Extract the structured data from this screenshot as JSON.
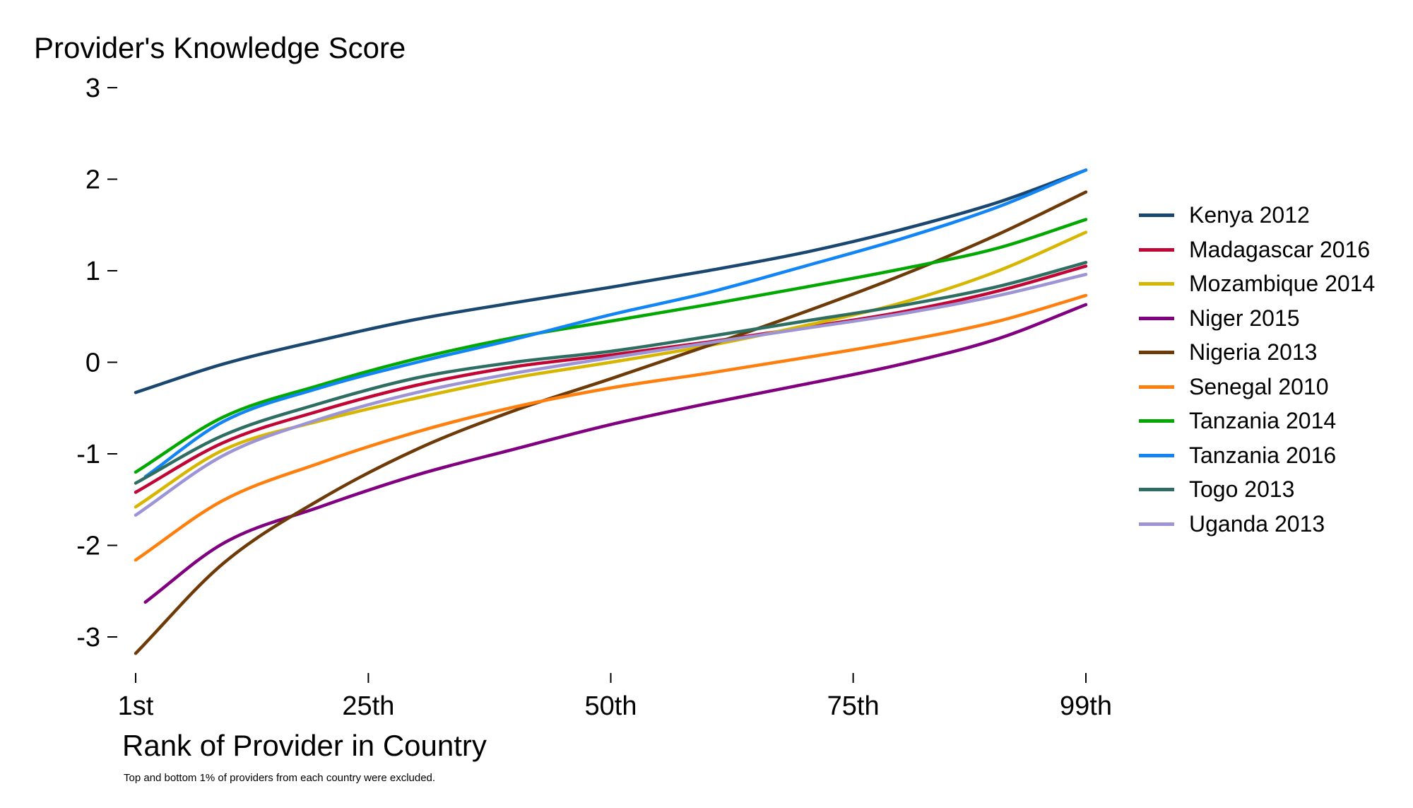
{
  "chart_data": {
    "type": "line",
    "ylabel": "Provider's Knowledge Score",
    "xlabel": "Rank of Provider in Country",
    "note": "Top and bottom 1% of providers from each country were excluded.",
    "xlim": [
      1,
      99
    ],
    "ylim": [
      -3.2,
      3
    ],
    "xticks": [
      1,
      25,
      50,
      75,
      99
    ],
    "xtick_labels": [
      "1st",
      "25th",
      "50th",
      "75th",
      "99th"
    ],
    "yticks": [
      3,
      2,
      1,
      0,
      -1,
      -2,
      -3
    ],
    "ytick_labels": [
      "3",
      "2",
      "1",
      "0",
      "-1",
      "-2",
      "-3"
    ],
    "grid": false,
    "legend_position": "right",
    "x_sample": [
      1,
      10,
      20,
      30,
      40,
      50,
      60,
      70,
      80,
      90,
      99
    ],
    "series": [
      {
        "name": "Kenya 2012",
        "color": "#1a476f",
        "x_start": 1,
        "values": [
          -0.33,
          -0.02,
          0.24,
          0.47,
          0.65,
          0.82,
          1.0,
          1.2,
          1.45,
          1.75,
          2.1
        ]
      },
      {
        "name": "Madagascar 2016",
        "color": "#c10534",
        "x_start": 1,
        "values": [
          -1.42,
          -0.88,
          -0.53,
          -0.25,
          -0.05,
          0.08,
          0.22,
          0.38,
          0.55,
          0.78,
          1.05
        ]
      },
      {
        "name": "Mozambique 2014",
        "color": "#d6b600",
        "x_start": 1,
        "values": [
          -1.58,
          -0.96,
          -0.64,
          -0.39,
          -0.17,
          0.0,
          0.18,
          0.4,
          0.65,
          1.0,
          1.42
        ]
      },
      {
        "name": "Niger 2015",
        "color": "#800080",
        "x_start": 2,
        "values": [
          -2.62,
          -1.98,
          -1.58,
          -1.23,
          -0.95,
          -0.68,
          -0.45,
          -0.24,
          -0.02,
          0.26,
          0.63
        ]
      },
      {
        "name": "Nigeria 2013",
        "color": "#6e3a07",
        "x_start": 1,
        "values": [
          -3.18,
          -2.2,
          -1.5,
          -0.95,
          -0.53,
          -0.18,
          0.18,
          0.55,
          0.95,
          1.4,
          1.86
        ]
      },
      {
        "name": "Senegal 2010",
        "color": "#ff7f0e",
        "x_start": 1,
        "values": [
          -2.16,
          -1.51,
          -1.1,
          -0.76,
          -0.49,
          -0.28,
          -0.12,
          0.05,
          0.23,
          0.45,
          0.73
        ]
      },
      {
        "name": "Tanzania 2014",
        "color": "#00a800",
        "x_start": 1,
        "values": [
          -1.2,
          -0.6,
          -0.25,
          0.04,
          0.27,
          0.45,
          0.63,
          0.82,
          1.02,
          1.25,
          1.56
        ]
      },
      {
        "name": "Tanzania 2016",
        "color": "#1185f5",
        "x_start": 2,
        "values": [
          -1.25,
          -0.65,
          -0.28,
          0.0,
          0.25,
          0.52,
          0.76,
          1.05,
          1.35,
          1.7,
          2.1
        ]
      },
      {
        "name": "Togo 2013",
        "color": "#2e6e62",
        "x_start": 1,
        "values": [
          -1.32,
          -0.8,
          -0.45,
          -0.17,
          0.0,
          0.12,
          0.28,
          0.45,
          0.62,
          0.83,
          1.09
        ]
      },
      {
        "name": "Uganda 2013",
        "color": "#9d94d6",
        "x_start": 1,
        "values": [
          -1.67,
          -1.02,
          -0.62,
          -0.33,
          -0.12,
          0.05,
          0.21,
          0.37,
          0.53,
          0.73,
          0.96
        ]
      }
    ]
  }
}
